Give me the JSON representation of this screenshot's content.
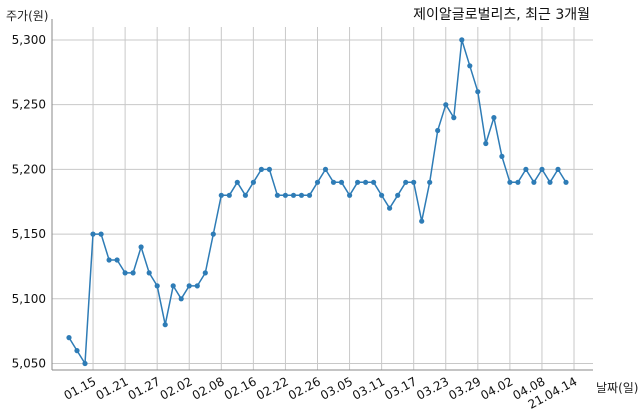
{
  "chart_data": {
    "type": "line",
    "title": "제이알글로벌리츠, 최근 3개월",
    "xlabel": "날짜(일)",
    "ylabel": "주가(원)",
    "ylim": [
      5045,
      5310
    ],
    "y_ticks": [
      5050,
      5100,
      5150,
      5200,
      5250,
      5300
    ],
    "y_tick_labels": [
      "5,050",
      "5,100",
      "5,150",
      "5,200",
      "5,250",
      "5,300"
    ],
    "x_tick_labels": [
      "01.15",
      "01.21",
      "01.27",
      "02.02",
      "02.08",
      "02.16",
      "02.22",
      "02.26",
      "03.05",
      "03.11",
      "03.17",
      "03.23",
      "03.29",
      "04.02",
      "04.08",
      "21.04.14"
    ],
    "x_tick_index": [
      3,
      7,
      11,
      15,
      19,
      23,
      27,
      31,
      35,
      39,
      43,
      47,
      51,
      55,
      59,
      63
    ],
    "grid": true,
    "color": "#2e7cb6",
    "series": [
      {
        "values": [
          5070,
          5060,
          5050,
          5150,
          5150,
          5130,
          5130,
          5120,
          5120,
          5140,
          5120,
          5110,
          5080,
          5110,
          5100,
          5110,
          5110,
          5120,
          5150,
          5180,
          5180,
          5190,
          5180,
          5190,
          5200,
          5200,
          5180,
          5180,
          5180,
          5180,
          5180,
          5190,
          5200,
          5190,
          5190,
          5180,
          5190,
          5190,
          5190,
          5180,
          5170,
          5180,
          5190,
          5190,
          5160,
          5190,
          5230,
          5250,
          5240,
          5300,
          5280,
          5260,
          5220,
          5240,
          5210,
          5190,
          5190,
          5200,
          5190,
          5200,
          5190,
          5200,
          5190
        ]
      }
    ]
  }
}
